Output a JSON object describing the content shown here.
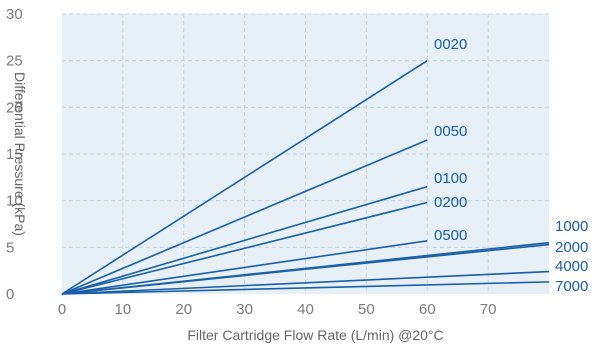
{
  "chart_data": {
    "type": "line",
    "xlabel": "Filter Cartridge Flow Rate (L/min) @20°C",
    "ylabel": "Differential Pressure (kPa)",
    "xlim": [
      0,
      80
    ],
    "ylim": [
      0,
      30
    ],
    "x_ticks": [
      "0",
      "10",
      "20",
      "30",
      "40",
      "50",
      "60",
      "70"
    ],
    "y_ticks": [
      "0",
      "5",
      "10",
      "15",
      "20",
      "25",
      "30"
    ],
    "grid": true,
    "colors": {
      "plot_bg": "#e6f0f6",
      "grid": "#c4d3df",
      "line": "#1a5fa8"
    },
    "series": [
      {
        "name": "0020",
        "x": [
          0,
          60
        ],
        "y": [
          0,
          25
        ]
      },
      {
        "name": "0050",
        "x": [
          0,
          60
        ],
        "y": [
          0,
          16.5
        ]
      },
      {
        "name": "0100",
        "x": [
          0,
          60
        ],
        "y": [
          0,
          11.5
        ]
      },
      {
        "name": "0200",
        "x": [
          0,
          60
        ],
        "y": [
          0,
          9.8
        ]
      },
      {
        "name": "0500",
        "x": [
          0,
          60
        ],
        "y": [
          0,
          5.7
        ]
      },
      {
        "name": "1000",
        "x": [
          0,
          80
        ],
        "y": [
          0,
          5.5
        ]
      },
      {
        "name": "2000",
        "x": [
          0,
          80
        ],
        "y": [
          0,
          5.3
        ]
      },
      {
        "name": "4000",
        "x": [
          0,
          80
        ],
        "y": [
          0,
          2.4
        ]
      },
      {
        "name": "7000",
        "x": [
          0,
          80
        ],
        "y": [
          0,
          1.3
        ]
      }
    ]
  }
}
